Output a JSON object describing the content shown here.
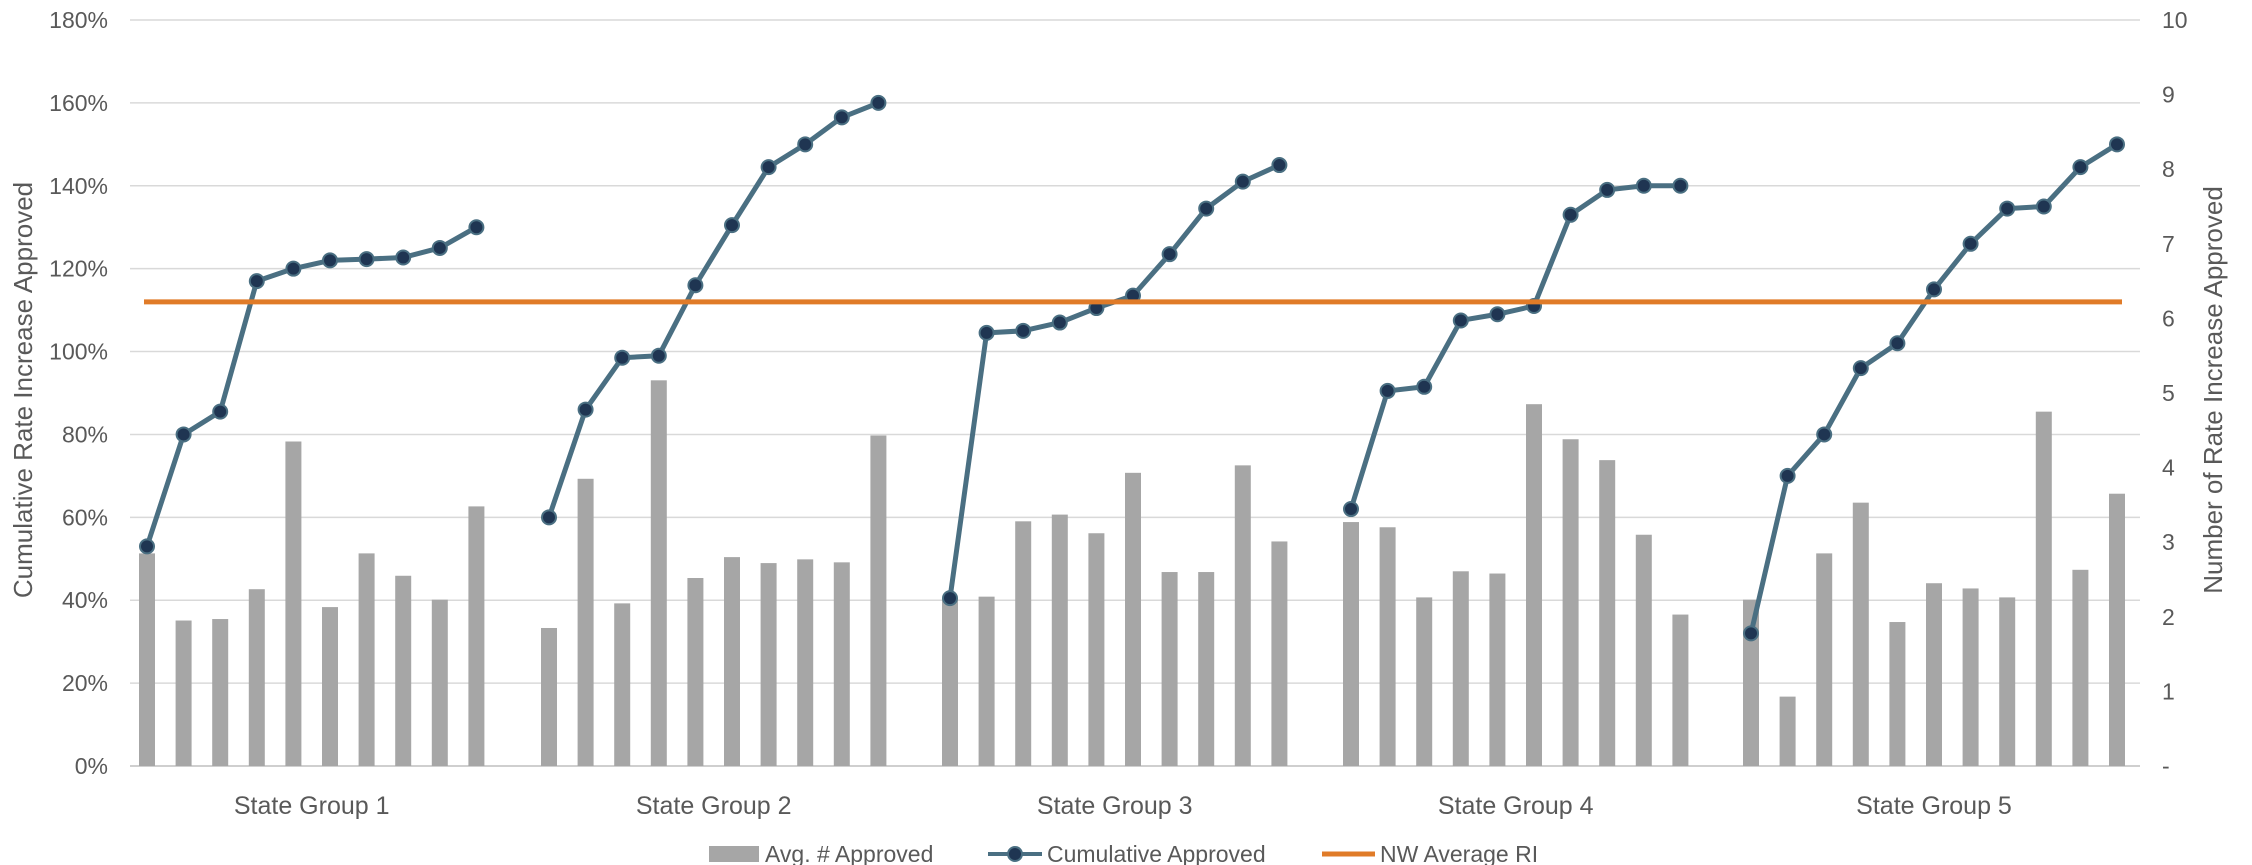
{
  "chart_data": {
    "type": "bar",
    "title": "",
    "y_left": {
      "label": "Cumulative Rate Increase Approved",
      "range": [
        0,
        180
      ],
      "ticks": [
        "0%",
        "20%",
        "40%",
        "60%",
        "80%",
        "100%",
        "120%",
        "140%",
        "160%",
        "180%"
      ]
    },
    "y_right": {
      "label": "Number of Rate Increase Approved",
      "range": [
        0,
        10
      ],
      "ticks": [
        "-",
        "1",
        "2",
        "3",
        "4",
        "5",
        "6",
        "7",
        "8",
        "9",
        "10"
      ]
    },
    "grid": true,
    "legend_position": "bottom",
    "groups": [
      {
        "label": "State Group 1",
        "bars": [
          2.85,
          1.95,
          1.97,
          2.37,
          4.35,
          2.13,
          2.85,
          2.55,
          2.23,
          3.48
        ],
        "cumulative": [
          53,
          80,
          85.5,
          117,
          120,
          122,
          122.3,
          122.7,
          125,
          130
        ]
      },
      {
        "label": "State Group 2",
        "bars": [
          1.85,
          3.85,
          2.18,
          5.17,
          2.52,
          2.8,
          2.72,
          2.77,
          2.73,
          4.43
        ],
        "cumulative": [
          60,
          86,
          98.5,
          99,
          116,
          130.5,
          144.5,
          150,
          156.5,
          160
        ]
      },
      {
        "label": "State Group 3",
        "bars": [
          2.25,
          2.27,
          3.28,
          3.37,
          3.12,
          3.93,
          2.6,
          2.6,
          4.03,
          3.01
        ],
        "cumulative": [
          40.5,
          104.5,
          105,
          107,
          110.5,
          113.5,
          123.5,
          134.5,
          141,
          145
        ]
      },
      {
        "label": "State Group 4",
        "bars": [
          3.27,
          3.2,
          2.26,
          2.61,
          2.58,
          4.85,
          4.38,
          4.1,
          3.1,
          2.03
        ],
        "cumulative": [
          62,
          90.5,
          91.5,
          107.5,
          109,
          111,
          133,
          139,
          140,
          140
        ]
      },
      {
        "label": "State Group 5",
        "bars": [
          2.23,
          0.93,
          2.85,
          3.53,
          1.93,
          2.45,
          2.38,
          2.26,
          4.75,
          2.63,
          3.65
        ],
        "cumulative": [
          32,
          70,
          80,
          96,
          102,
          115,
          126,
          134.5,
          135,
          144.5,
          150
        ]
      }
    ],
    "reference_line": {
      "name": "NW Average RI",
      "value": 112,
      "axis": "left"
    },
    "series": [
      {
        "name": "Avg. # Approved",
        "type": "bar",
        "axis": "right",
        "color": "#a6a6a6"
      },
      {
        "name": "Cumulative Approved",
        "type": "line",
        "axis": "left",
        "color": "#4a6f82",
        "marker_color": "#1f3552"
      },
      {
        "name": "NW Average RI",
        "type": "line",
        "axis": "left",
        "color": "#e07b28"
      }
    ]
  }
}
